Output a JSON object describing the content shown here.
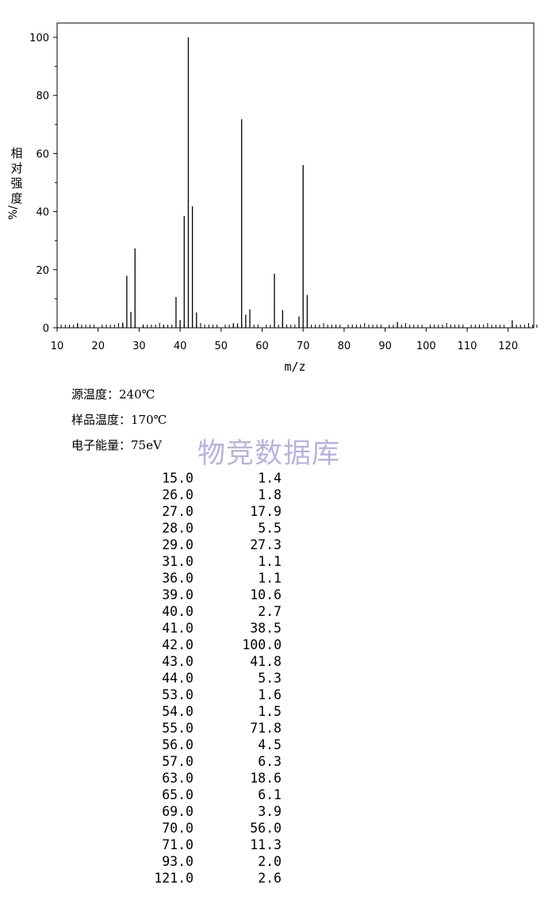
{
  "chart_data": {
    "type": "bar",
    "xlabel": "m/z",
    "ylabel": "相对强度 %/",
    "xlim": [
      10,
      127
    ],
    "ylim": [
      0,
      104
    ],
    "xticks": [
      "10",
      "20",
      "30",
      "40",
      "50",
      "60",
      "70",
      "80",
      "90",
      "100",
      "110",
      "120"
    ],
    "yticks": [
      "0",
      "20",
      "40",
      "60",
      "80",
      "100"
    ],
    "peaks": [
      {
        "x": 15,
        "y": 1.4
      },
      {
        "x": 26,
        "y": 1.8
      },
      {
        "x": 27,
        "y": 17.9
      },
      {
        "x": 28,
        "y": 5.5
      },
      {
        "x": 29,
        "y": 27.3
      },
      {
        "x": 31,
        "y": 1.1
      },
      {
        "x": 36,
        "y": 1.1
      },
      {
        "x": 39,
        "y": 10.6
      },
      {
        "x": 40,
        "y": 2.7
      },
      {
        "x": 41,
        "y": 38.5
      },
      {
        "x": 42,
        "y": 100.0
      },
      {
        "x": 43,
        "y": 41.8
      },
      {
        "x": 44,
        "y": 5.3
      },
      {
        "x": 53,
        "y": 1.6
      },
      {
        "x": 54,
        "y": 1.5
      },
      {
        "x": 55,
        "y": 71.8
      },
      {
        "x": 56,
        "y": 4.5
      },
      {
        "x": 57,
        "y": 6.3
      },
      {
        "x": 63,
        "y": 18.6
      },
      {
        "x": 65,
        "y": 6.1
      },
      {
        "x": 69,
        "y": 3.9
      },
      {
        "x": 70,
        "y": 56.0
      },
      {
        "x": 71,
        "y": 11.3
      },
      {
        "x": 93,
        "y": 2.0
      },
      {
        "x": 121,
        "y": 2.6
      }
    ]
  },
  "conditions": {
    "source_temp": "源温度：240℃",
    "sample_temp": "样品温度：170℃",
    "electron_energy": "电子能量：75eV"
  },
  "watermark": "物竞数据库",
  "peak_table": [
    [
      "15.0",
      "1.4"
    ],
    [
      "26.0",
      "1.8"
    ],
    [
      "27.0",
      "17.9"
    ],
    [
      "28.0",
      "5.5"
    ],
    [
      "29.0",
      "27.3"
    ],
    [
      "31.0",
      "1.1"
    ],
    [
      "36.0",
      "1.1"
    ],
    [
      "39.0",
      "10.6"
    ],
    [
      "40.0",
      "2.7"
    ],
    [
      "41.0",
      "38.5"
    ],
    [
      "42.0",
      "100.0"
    ],
    [
      "43.0",
      "41.8"
    ],
    [
      "44.0",
      "5.3"
    ],
    [
      "53.0",
      "1.6"
    ],
    [
      "54.0",
      "1.5"
    ],
    [
      "55.0",
      "71.8"
    ],
    [
      "56.0",
      "4.5"
    ],
    [
      "57.0",
      "6.3"
    ],
    [
      "63.0",
      "18.6"
    ],
    [
      "65.0",
      "6.1"
    ],
    [
      "69.0",
      "3.9"
    ],
    [
      "70.0",
      "56.0"
    ],
    [
      "71.0",
      "11.3"
    ],
    [
      "93.0",
      "2.0"
    ],
    [
      "121.0",
      "2.6"
    ]
  ]
}
